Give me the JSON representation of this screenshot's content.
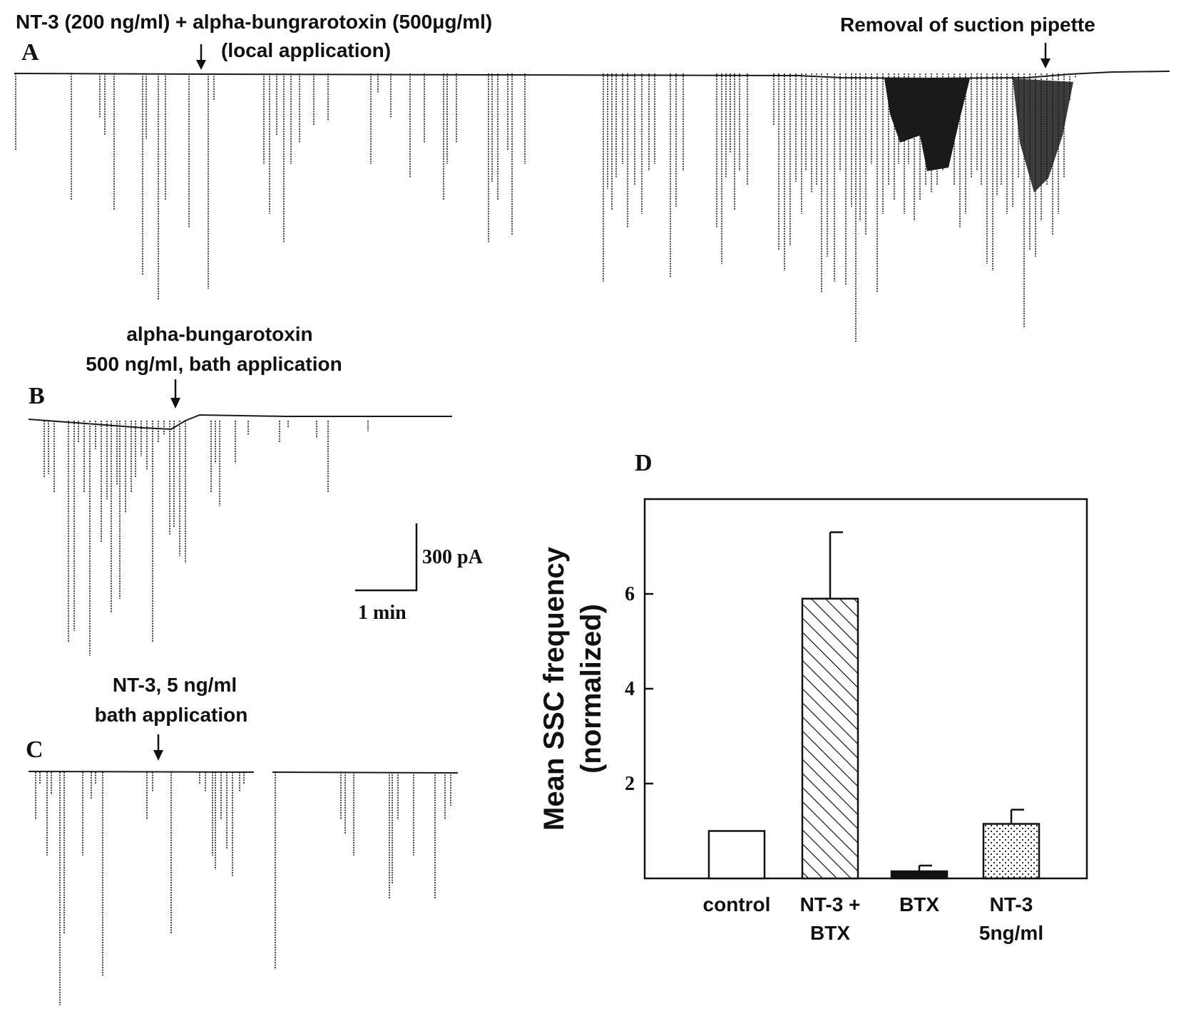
{
  "panels": {
    "A": {
      "letter": "A",
      "label_line1": "NT-3 (200 ng/ml) + alpha-bungrarotoxin (500μg/ml)",
      "label_line2": "(local application)",
      "removal_label": "Removal of suction pipette"
    },
    "B": {
      "letter": "B",
      "label_line1": "alpha-bungarotoxin",
      "label_line2": "500 ng/ml, bath application"
    },
    "C": {
      "letter": "C",
      "label_line1": "NT-3, 5 ng/ml",
      "label_line2": "bath application"
    },
    "D": {
      "letter": "D"
    }
  },
  "scale_bar": {
    "vertical_label": "300 pA",
    "horizontal_label": "1 min"
  },
  "chart_data": {
    "type": "bar",
    "panel": "D",
    "categories": [
      "control",
      "NT-3 + BTX",
      "BTX",
      "NT-3 5ng/ml"
    ],
    "category_label_lines": [
      [
        "control"
      ],
      [
        "NT-3 +",
        "BTX"
      ],
      [
        "BTX"
      ],
      [
        "NT-3",
        "5ng/ml"
      ]
    ],
    "values": [
      1.0,
      5.9,
      0.15,
      1.15
    ],
    "error_upper": [
      0.0,
      1.4,
      0.12,
      0.3
    ],
    "fills": [
      "white",
      "diagonal-hatch",
      "solid-black",
      "stippled"
    ],
    "ylabel_line1": "Mean SSC frequency",
    "ylabel_line2": "(normalized)",
    "yticks": [
      2,
      4,
      6
    ],
    "ylim": [
      0,
      8
    ],
    "grid": false,
    "title": "",
    "xlabel": ""
  }
}
